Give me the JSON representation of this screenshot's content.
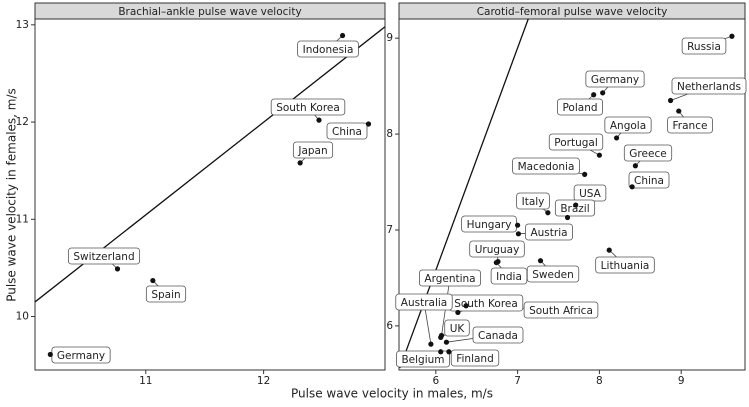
{
  "shared_axes": {
    "x_label": "Pulse wave velocity in males, m/s",
    "y_label": "Pulse wave velocity in females, m/s"
  },
  "chart_data": [
    {
      "type": "scatter",
      "title": "Brachial–ankle pulse wave velocity",
      "color": "#111111",
      "labels": [
        "Indonesia",
        "South Korea",
        "China",
        "Japan",
        "Switzerland",
        "Spain",
        "Germany"
      ],
      "x": [
        12.67,
        12.47,
        12.89,
        12.31,
        10.76,
        11.06,
        10.19
      ],
      "y": [
        12.89,
        12.02,
        11.98,
        11.58,
        10.49,
        10.37,
        9.61
      ],
      "line": {
        "x": [
          10.06,
          13.03
        ],
        "y": [
          10.15,
          12.98
        ]
      },
      "xlim": [
        10.06,
        13.03
      ],
      "ylim": [
        9.45,
        13.06
      ],
      "xticks": [
        11,
        12
      ],
      "yticks": [
        10,
        11,
        12,
        13
      ]
    },
    {
      "type": "scatter",
      "title": "Carotid–femoral pulse wave velocity",
      "color": "#111111",
      "labels": [
        "Russia",
        "Germany",
        "Poland",
        "Netherlands",
        "France",
        "Angola",
        "Portugal",
        "Greece",
        "Macedonia",
        "China",
        "USA",
        "Brazil",
        "Italy",
        "Hungary",
        "Austria",
        "Uruguay",
        "Lithuania",
        "India",
        "Sweden",
        "Argentina",
        "South Korea",
        "South Africa",
        "Australia",
        "UK",
        "Canada",
        "Belgium",
        "Finland"
      ],
      "x": [
        9.62,
        8.04,
        7.93,
        8.87,
        8.97,
        8.21,
        8.0,
        8.44,
        7.82,
        8.4,
        7.71,
        7.61,
        7.37,
        7.0,
        7.01,
        6.76,
        8.12,
        6.74,
        7.28,
        6.07,
        6.27,
        6.37,
        5.94,
        6.06,
        6.13,
        6.06,
        6.16
      ],
      "y": [
        9.02,
        8.43,
        8.41,
        8.35,
        8.24,
        7.96,
        7.78,
        7.67,
        7.58,
        7.45,
        7.26,
        7.13,
        7.18,
        7.05,
        6.96,
        6.67,
        6.79,
        6.66,
        6.68,
        5.9,
        6.14,
        6.21,
        5.81,
        5.88,
        5.83,
        5.73,
        5.73
      ],
      "line": {
        "x": [
          5.56,
          7.13
        ],
        "y": [
          5.56,
          9.2
        ]
      },
      "xlim": [
        5.55,
        9.78
      ],
      "ylim": [
        5.54,
        9.2
      ],
      "xticks": [
        6,
        7,
        8,
        9
      ],
      "yticks": [
        6,
        7,
        8,
        9
      ]
    }
  ]
}
